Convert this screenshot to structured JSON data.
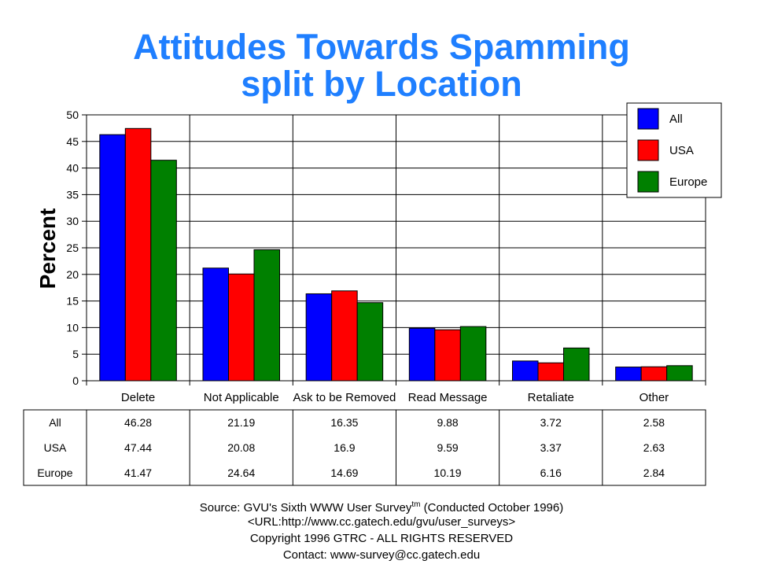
{
  "chart_data": {
    "type": "bar",
    "title": "Attitudes Towards Spamming",
    "subtitle": "split by Location",
    "ylabel": "Percent",
    "xlabel": "",
    "ylim": [
      0,
      50
    ],
    "yticks": [
      0,
      5,
      10,
      15,
      20,
      25,
      30,
      35,
      40,
      45,
      50
    ],
    "grid": true,
    "legend_position": "top-right",
    "categories": [
      "Delete",
      "Not Applicable",
      "Ask to be Removed",
      "Read Message",
      "Retaliate",
      "Other"
    ],
    "series": [
      {
        "name": "All",
        "color": "#0000ff",
        "values": [
          46.28,
          21.19,
          16.35,
          9.88,
          3.72,
          2.58
        ],
        "labels": [
          "46.28",
          "21.19",
          "16.35",
          "9.88",
          "3.72",
          "2.58"
        ]
      },
      {
        "name": "USA",
        "color": "#ff0000",
        "values": [
          47.44,
          20.08,
          16.9,
          9.59,
          3.37,
          2.63
        ],
        "labels": [
          "47.44",
          "20.08",
          "16.9",
          "9.59",
          "3.37",
          "2.63"
        ]
      },
      {
        "name": "Europe",
        "color": "#008000",
        "values": [
          41.47,
          24.64,
          14.69,
          10.19,
          6.16,
          2.84
        ],
        "labels": [
          "41.47",
          "24.64",
          "14.69",
          "10.19",
          "6.16",
          "2.84"
        ]
      }
    ]
  },
  "footer": {
    "source_prefix": "Source: GVU's Sixth WWW User Survey",
    "source_sup": "tm",
    "source_suffix": "  (Conducted October 1996)",
    "url": "<URL:http://www.cc.gatech.edu/gvu/user_surveys>",
    "copyright": "Copyright 1996 GTRC -  ALL RIGHTS RESERVED",
    "contact": "Contact: www-survey@cc.gatech.edu"
  }
}
